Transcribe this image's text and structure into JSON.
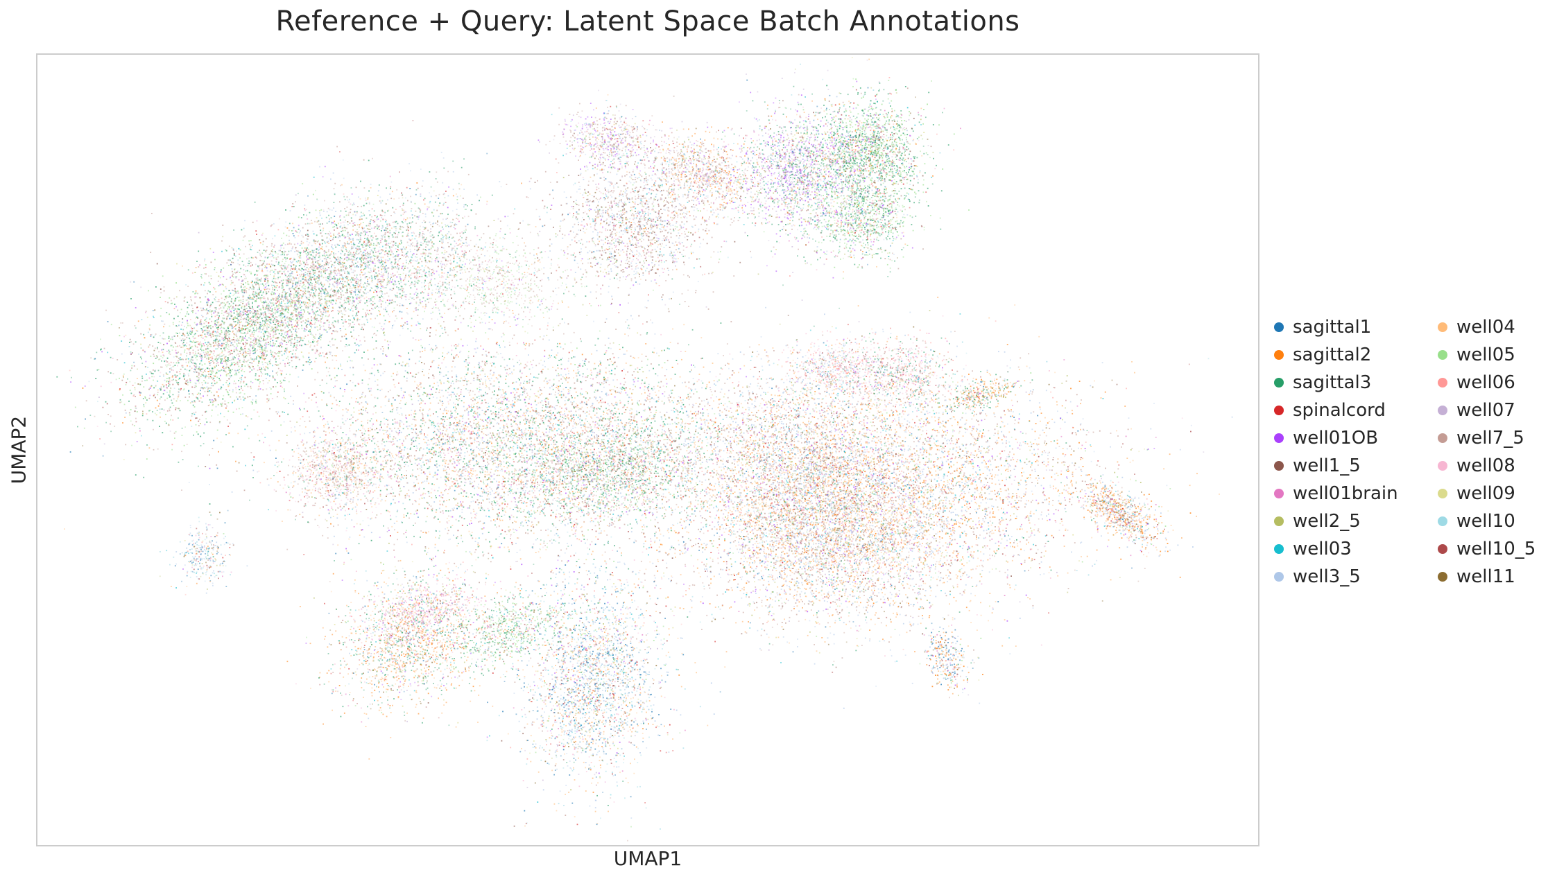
{
  "chart_data": {
    "type": "scatter",
    "title": "Reference + Query: Latent Space Batch Annotations",
    "xlabel": "UMAP1",
    "ylabel": "UMAP2",
    "grid": false,
    "legend_position": "right",
    "series": [
      {
        "name": "sagittal1",
        "color": "#1f77b4"
      },
      {
        "name": "sagittal2",
        "color": "#ff7f0e"
      },
      {
        "name": "sagittal3",
        "color": "#279e68"
      },
      {
        "name": "spinalcord",
        "color": "#d62728"
      },
      {
        "name": "well01OB",
        "color": "#aa40fc"
      },
      {
        "name": "well1_5",
        "color": "#8c564b"
      },
      {
        "name": "well01brain",
        "color": "#e377c2"
      },
      {
        "name": "well2_5",
        "color": "#b5bd61"
      },
      {
        "name": "well03",
        "color": "#17becf"
      },
      {
        "name": "well3_5",
        "color": "#aec7e8"
      },
      {
        "name": "well04",
        "color": "#ffbb78"
      },
      {
        "name": "well05",
        "color": "#98df8a"
      },
      {
        "name": "well06",
        "color": "#ff9896"
      },
      {
        "name": "well07",
        "color": "#c5b0d5"
      },
      {
        "name": "well7_5",
        "color": "#c49c94"
      },
      {
        "name": "well08",
        "color": "#f7b6d2"
      },
      {
        "name": "well09",
        "color": "#dbdb8d"
      },
      {
        "name": "well10",
        "color": "#9edae5"
      },
      {
        "name": "well10_5",
        "color": "#ad494a"
      },
      {
        "name": "well11",
        "color": "#8c6d31"
      }
    ]
  }
}
